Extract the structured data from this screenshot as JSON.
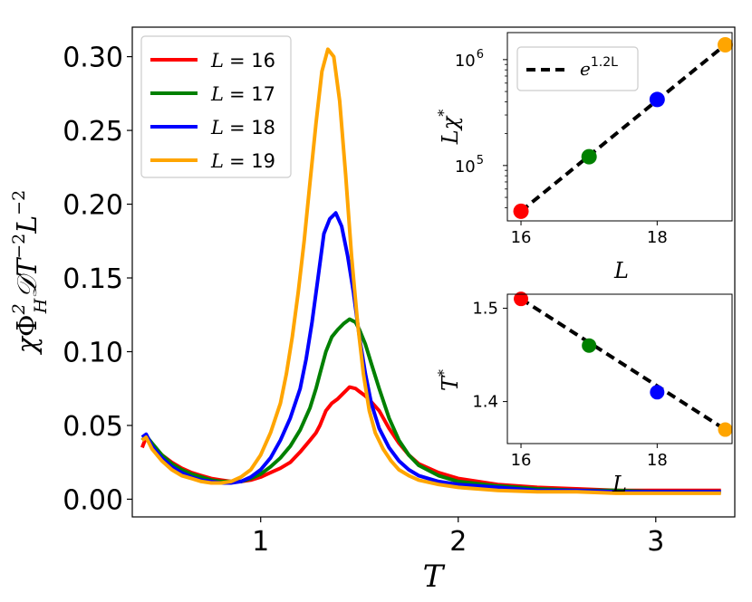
{
  "chart_data": [
    {
      "type": "line",
      "xlabel": "T",
      "ylabel": "χΦ_H²𝒟T⁻²L⁻²",
      "ylabel_parts": {
        "chi": "χ",
        "phi": "Φ",
        "phi_sup": "2",
        "phi_sub": "H",
        "d": "𝒟",
        "t": "T",
        "t_sup": "−2",
        "l": "L",
        "l_sup": "−2"
      },
      "xlim": [
        0.35,
        3.4
      ],
      "ylim": [
        -0.012,
        0.32
      ],
      "xticks": [
        1,
        2,
        3
      ],
      "xtick_labels": [
        "1",
        "2",
        "3"
      ],
      "yticks": [
        0.0,
        0.05,
        0.1,
        0.15,
        0.2,
        0.25,
        0.3
      ],
      "ytick_labels": [
        "0.00",
        "0.05",
        "0.10",
        "0.15",
        "0.20",
        "0.25",
        "0.30"
      ],
      "legend_position": "top-left",
      "series": [
        {
          "name": "L = 16",
          "legend_var": "L",
          "legend_value": "= 16",
          "color": "#ff0000",
          "x": [
            0.4,
            0.42,
            0.45,
            0.5,
            0.55,
            0.6,
            0.65,
            0.7,
            0.75,
            0.8,
            0.85,
            0.9,
            0.95,
            1.0,
            1.05,
            1.1,
            1.15,
            1.2,
            1.25,
            1.28,
            1.3,
            1.33,
            1.36,
            1.39,
            1.42,
            1.45,
            1.48,
            1.5,
            1.53,
            1.56,
            1.6,
            1.65,
            1.7,
            1.75,
            1.8,
            1.9,
            2.0,
            2.2,
            2.4,
            2.6,
            2.8,
            3.0,
            3.2,
            3.33
          ],
          "y": [
            0.035,
            0.042,
            0.037,
            0.03,
            0.025,
            0.021,
            0.018,
            0.016,
            0.014,
            0.013,
            0.012,
            0.012,
            0.013,
            0.015,
            0.018,
            0.021,
            0.025,
            0.032,
            0.04,
            0.045,
            0.05,
            0.06,
            0.065,
            0.068,
            0.072,
            0.076,
            0.075,
            0.073,
            0.07,
            0.066,
            0.06,
            0.048,
            0.038,
            0.03,
            0.024,
            0.018,
            0.014,
            0.01,
            0.008,
            0.007,
            0.006,
            0.006,
            0.006,
            0.006
          ]
        },
        {
          "name": "L = 17",
          "legend_var": "L",
          "legend_value": "= 17",
          "color": "#008000",
          "x": [
            0.4,
            0.42,
            0.45,
            0.5,
            0.55,
            0.6,
            0.65,
            0.7,
            0.75,
            0.8,
            0.85,
            0.9,
            0.95,
            1.0,
            1.05,
            1.1,
            1.15,
            1.2,
            1.25,
            1.28,
            1.3,
            1.33,
            1.36,
            1.39,
            1.42,
            1.45,
            1.48,
            1.5,
            1.53,
            1.56,
            1.6,
            1.65,
            1.7,
            1.75,
            1.8,
            1.9,
            2.0,
            2.2,
            2.4,
            2.6,
            2.8,
            3.0,
            3.2,
            3.33
          ],
          "y": [
            0.04,
            0.043,
            0.038,
            0.03,
            0.024,
            0.02,
            0.017,
            0.015,
            0.013,
            0.012,
            0.012,
            0.012,
            0.014,
            0.017,
            0.022,
            0.028,
            0.036,
            0.047,
            0.062,
            0.075,
            0.085,
            0.1,
            0.11,
            0.115,
            0.119,
            0.122,
            0.12,
            0.115,
            0.105,
            0.092,
            0.075,
            0.055,
            0.04,
            0.03,
            0.023,
            0.016,
            0.012,
            0.009,
            0.007,
            0.006,
            0.006,
            0.005,
            0.005,
            0.005
          ]
        },
        {
          "name": "L = 18",
          "legend_var": "L",
          "legend_value": "= 18",
          "color": "#0000ff",
          "x": [
            0.4,
            0.42,
            0.45,
            0.5,
            0.55,
            0.6,
            0.65,
            0.7,
            0.75,
            0.8,
            0.85,
            0.9,
            0.95,
            1.0,
            1.05,
            1.1,
            1.15,
            1.2,
            1.23,
            1.26,
            1.29,
            1.32,
            1.35,
            1.38,
            1.41,
            1.44,
            1.47,
            1.5,
            1.53,
            1.56,
            1.6,
            1.65,
            1.7,
            1.75,
            1.8,
            1.9,
            2.0,
            2.2,
            2.4,
            2.6,
            2.8,
            3.0,
            3.2,
            3.33
          ],
          "y": [
            0.042,
            0.044,
            0.036,
            0.028,
            0.022,
            0.018,
            0.015,
            0.013,
            0.012,
            0.011,
            0.011,
            0.012,
            0.015,
            0.02,
            0.028,
            0.04,
            0.055,
            0.075,
            0.095,
            0.12,
            0.15,
            0.18,
            0.19,
            0.194,
            0.185,
            0.165,
            0.14,
            0.11,
            0.085,
            0.065,
            0.048,
            0.035,
            0.026,
            0.02,
            0.016,
            0.012,
            0.01,
            0.008,
            0.006,
            0.006,
            0.005,
            0.005,
            0.005,
            0.005
          ]
        },
        {
          "name": "L = 19",
          "legend_var": "L",
          "legend_value": "= 19",
          "color": "#ffa500",
          "x": [
            0.4,
            0.42,
            0.45,
            0.5,
            0.55,
            0.6,
            0.65,
            0.7,
            0.75,
            0.8,
            0.85,
            0.9,
            0.95,
            1.0,
            1.05,
            1.1,
            1.13,
            1.16,
            1.19,
            1.22,
            1.25,
            1.28,
            1.31,
            1.34,
            1.37,
            1.4,
            1.43,
            1.46,
            1.49,
            1.52,
            1.55,
            1.58,
            1.62,
            1.66,
            1.7,
            1.75,
            1.8,
            1.9,
            2.0,
            2.2,
            2.4,
            2.6,
            2.8,
            3.0,
            3.2,
            3.33
          ],
          "y": [
            0.04,
            0.042,
            0.034,
            0.026,
            0.02,
            0.016,
            0.014,
            0.012,
            0.011,
            0.011,
            0.012,
            0.015,
            0.02,
            0.03,
            0.045,
            0.065,
            0.085,
            0.11,
            0.14,
            0.175,
            0.215,
            0.255,
            0.29,
            0.305,
            0.3,
            0.27,
            0.22,
            0.165,
            0.12,
            0.085,
            0.06,
            0.045,
            0.034,
            0.026,
            0.02,
            0.016,
            0.013,
            0.01,
            0.008,
            0.006,
            0.005,
            0.005,
            0.004,
            0.004,
            0.004,
            0.004
          ]
        }
      ]
    },
    {
      "type": "scatter",
      "xlabel": "L",
      "ylabel": "Lχ*",
      "ylabel_parts": {
        "l": "L",
        "chi": "χ",
        "sup": "*"
      },
      "yscale": "log",
      "xlim": [
        15.8,
        19.1
      ],
      "ylim": [
        30000,
        1800000
      ],
      "xticks": [
        16,
        18
      ],
      "xtick_labels": [
        "16",
        "18"
      ],
      "yticks": [
        100000,
        1000000
      ],
      "ytick_labels": [
        {
          "base": "10",
          "exp": "5"
        },
        {
          "base": "10",
          "exp": "6"
        }
      ],
      "legend_position": "top-left",
      "fit": {
        "label_base": "e",
        "label_exp": "1.2L",
        "style": "dashed",
        "color": "#000000"
      },
      "points": [
        {
          "x": 16,
          "y": 37000,
          "color": "#ff0000"
        },
        {
          "x": 17,
          "y": 121000,
          "color": "#008000"
        },
        {
          "x": 18,
          "y": 420000,
          "color": "#0000ff"
        },
        {
          "x": 19,
          "y": 1380000,
          "color": "#ffa500"
        }
      ]
    },
    {
      "type": "scatter",
      "xlabel": "L",
      "ylabel": "T*",
      "ylabel_parts": {
        "t": "T",
        "sup": "*"
      },
      "xlim": [
        15.8,
        19.1
      ],
      "ylim": [
        1.355,
        1.515
      ],
      "xticks": [
        16,
        18
      ],
      "xtick_labels": [
        "16",
        "18"
      ],
      "yticks": [
        1.4,
        1.5
      ],
      "ytick_labels": [
        "1.4",
        "1.5"
      ],
      "fit": {
        "style": "dashed",
        "color": "#000000"
      },
      "points": [
        {
          "x": 16,
          "y": 1.51,
          "color": "#ff0000"
        },
        {
          "x": 17,
          "y": 1.46,
          "color": "#008000"
        },
        {
          "x": 18,
          "y": 1.41,
          "color": "#0000ff"
        },
        {
          "x": 19,
          "y": 1.37,
          "color": "#ffa500"
        }
      ]
    }
  ]
}
